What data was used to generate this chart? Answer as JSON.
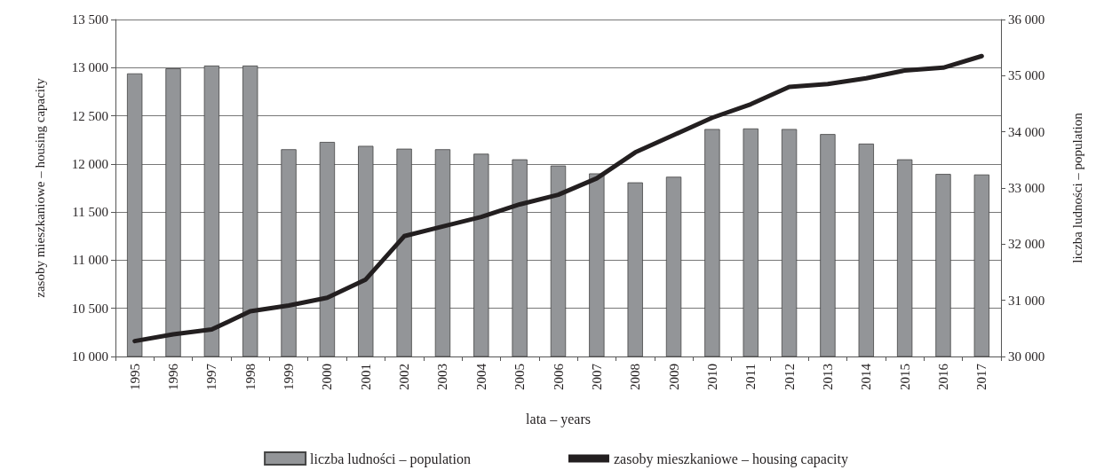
{
  "chart_data": {
    "type": "bar",
    "xlabel": "lata – years",
    "ylabel": "zasoby mieszkaniowe – housing capacity",
    "y2label": "liczba ludności – population",
    "categories": [
      "1995",
      "1996",
      "1997",
      "1998",
      "1999",
      "2000",
      "2001",
      "2002",
      "2003",
      "2004",
      "2005",
      "2006",
      "2007",
      "2008",
      "2009",
      "2010",
      "2011",
      "2012",
      "2013",
      "2014",
      "2015",
      "2016",
      "2017"
    ],
    "series": [
      {
        "name": "liczba ludności – population",
        "axis": "y2",
        "color": "#939598",
        "values": [
          35040,
          35130,
          35180,
          35180,
          33690,
          33820,
          33750,
          33700,
          33690,
          33610,
          33510,
          33400,
          33260,
          33100,
          33200,
          34050,
          34060,
          34050,
          33960,
          33790,
          33510,
          33250,
          33240
        ]
      },
      {
        "name": "zasoby mieszkaniowe – housing capacity",
        "type": "line",
        "color": "#231f20",
        "values": [
          10160,
          10230,
          10280,
          10470,
          10530,
          10610,
          10800,
          11250,
          11350,
          11450,
          11580,
          11680,
          11850,
          12120,
          12300,
          12480,
          12620,
          12800,
          12830,
          12890,
          12970,
          13000,
          13120
        ]
      }
    ],
    "ylim": [
      10000,
      13500
    ],
    "yticks": [
      {
        "value": 10000,
        "label": "10 000"
      },
      {
        "value": 10500,
        "label": "10 500"
      },
      {
        "value": 11000,
        "label": "11 000"
      },
      {
        "value": 11500,
        "label": "11 500"
      },
      {
        "value": 12000,
        "label": "12 000"
      },
      {
        "value": 12500,
        "label": "12 500"
      },
      {
        "value": 13000,
        "label": "13 000"
      },
      {
        "value": 13500,
        "label": "13 500"
      }
    ],
    "y2lim": [
      30000,
      36000
    ],
    "y2ticks": [
      {
        "value": 30000,
        "label": "30 000"
      },
      {
        "value": 31000,
        "label": "31 000"
      },
      {
        "value": 32000,
        "label": "32 000"
      },
      {
        "value": 33000,
        "label": "33 000"
      },
      {
        "value": 34000,
        "label": "34 000"
      },
      {
        "value": 35000,
        "label": "35 000"
      },
      {
        "value": 36000,
        "label": "36 000"
      }
    ],
    "grid": "y",
    "legend": "bottom",
    "marker": "none",
    "line_style": "solid"
  }
}
